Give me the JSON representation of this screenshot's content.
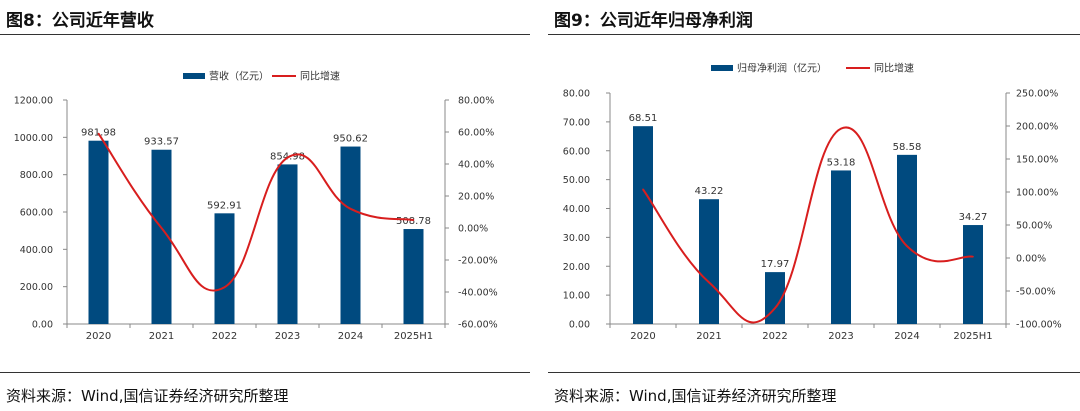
{
  "colors": {
    "bar": "#004a7f",
    "line": "#d81e1e",
    "axis": "#888888",
    "text": "#333333"
  },
  "panels": [
    {
      "title": "图8：公司近年营收",
      "source": "资料来源：Wind,国信证券经济研究所整理"
    },
    {
      "title": "图9：公司近年归母净利润",
      "source": "资料来源：Wind,国信证券经济研究所整理"
    }
  ],
  "chart_data": [
    {
      "type": "bar+line",
      "title": "图8：公司近年营收",
      "categories": [
        "2020",
        "2021",
        "2022",
        "2023",
        "2024",
        "2025H1"
      ],
      "series": [
        {
          "name": "营收（亿元）",
          "kind": "bar",
          "axis": "left",
          "values": [
            981.98,
            933.57,
            592.91,
            854.98,
            950.62,
            508.78
          ],
          "labels": [
            "981.98",
            "933.57",
            "592.91",
            "854.98",
            "950.62",
            "508.78"
          ]
        },
        {
          "name": "同比增速",
          "kind": "line",
          "axis": "right",
          "values": [
            59,
            0,
            -37,
            44,
            12,
            5
          ]
        }
      ],
      "ylim_left": [
        0,
        1200
      ],
      "yticks_left": [
        0,
        200,
        400,
        600,
        800,
        1000,
        1200
      ],
      "yticklabels_left": [
        "0.00",
        "200.00",
        "400.00",
        "600.00",
        "800.00",
        "1000.00",
        "1200.00"
      ],
      "ylim_right": [
        -60,
        80
      ],
      "yticks_right": [
        -60,
        -40,
        -20,
        0,
        20,
        40,
        60,
        80
      ],
      "yticklabels_right": [
        "-60.00%",
        "-40.00%",
        "-20.00%",
        "0.00%",
        "20.00%",
        "40.00%",
        "60.00%",
        "80.00%"
      ],
      "legend": "top-center"
    },
    {
      "type": "bar+line",
      "title": "图9：公司近年归母净利润",
      "categories": [
        "2020",
        "2021",
        "2022",
        "2023",
        "2024",
        "2025H1"
      ],
      "series": [
        {
          "name": "归母净利润（亿元）",
          "kind": "bar",
          "axis": "left",
          "values": [
            68.51,
            43.22,
            17.97,
            53.18,
            58.58,
            34.27
          ],
          "labels": [
            "68.51",
            "43.22",
            "17.97",
            "53.18",
            "58.58",
            "34.27"
          ]
        },
        {
          "name": "同比增速",
          "kind": "line",
          "axis": "right",
          "values": [
            104,
            -37,
            -76,
            196,
            18,
            2
          ]
        }
      ],
      "ylim_left": [
        0,
        80
      ],
      "yticks_left": [
        0,
        10,
        20,
        30,
        40,
        50,
        60,
        70,
        80
      ],
      "yticklabels_left": [
        "0.00",
        "10.00",
        "20.00",
        "30.00",
        "40.00",
        "50.00",
        "60.00",
        "70.00",
        "80.00"
      ],
      "ylim_right": [
        -100,
        250
      ],
      "yticks_right": [
        -100,
        -50,
        0,
        50,
        100,
        150,
        200,
        250
      ],
      "yticklabels_right": [
        "-100.00%",
        "-50.00%",
        "0.00%",
        "50.00%",
        "100.00%",
        "150.00%",
        "200.00%",
        "250.00%"
      ],
      "legend": "top-center"
    }
  ]
}
